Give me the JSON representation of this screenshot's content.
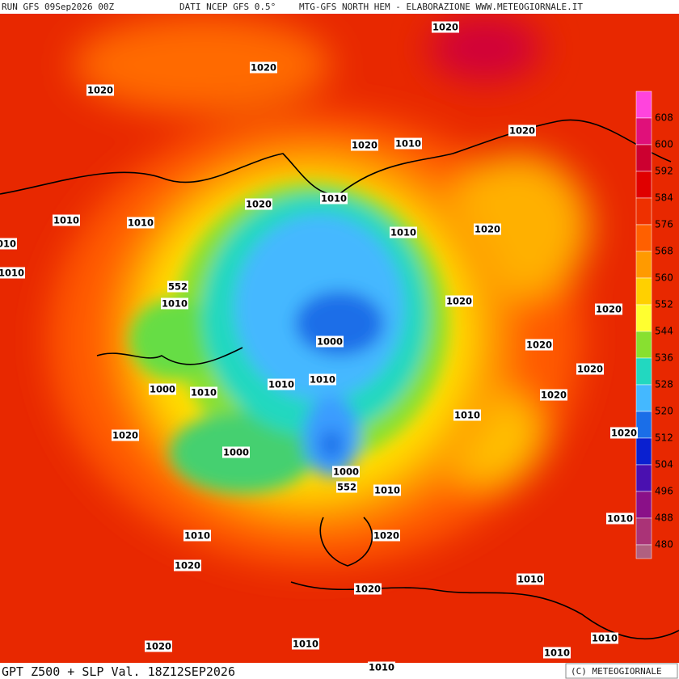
{
  "header": {
    "run": "RUN GFS 09Sep2026 00Z",
    "source": "DATI NCEP GFS 0.5°",
    "site": "MTG-GFS NORTH HEM - ELABORAZIONE WWW.METEOGIORNALE.IT"
  },
  "footer": {
    "title": "GPT Z500 + SLP Val. 18Z12SEP2026",
    "copyright": "(C) METEOGIORNALE"
  },
  "colorbar": {
    "labels": [
      "608",
      "600",
      "592",
      "584",
      "576",
      "568",
      "560",
      "552",
      "544",
      "536",
      "528",
      "520",
      "512",
      "504",
      "496",
      "488",
      "480"
    ]
  },
  "contour_labels": [
    "1020",
    "1020",
    "1020",
    "1010",
    "1020",
    "1020",
    "1010",
    "1020",
    "1010",
    "1010",
    "1010",
    "1010",
    "1010",
    "1020",
    "552",
    "1010",
    "1020",
    "1020",
    "1000",
    "1020",
    "1020",
    "1010",
    "1010",
    "1000",
    "1010",
    "1020",
    "1010",
    "1020",
    "1020",
    "1000",
    "1000",
    "552",
    "1010",
    "1010",
    "1020",
    "1010",
    "1020",
    "1010",
    "1020",
    "1010",
    "1020",
    "1010",
    "1010",
    "1010"
  ]
}
